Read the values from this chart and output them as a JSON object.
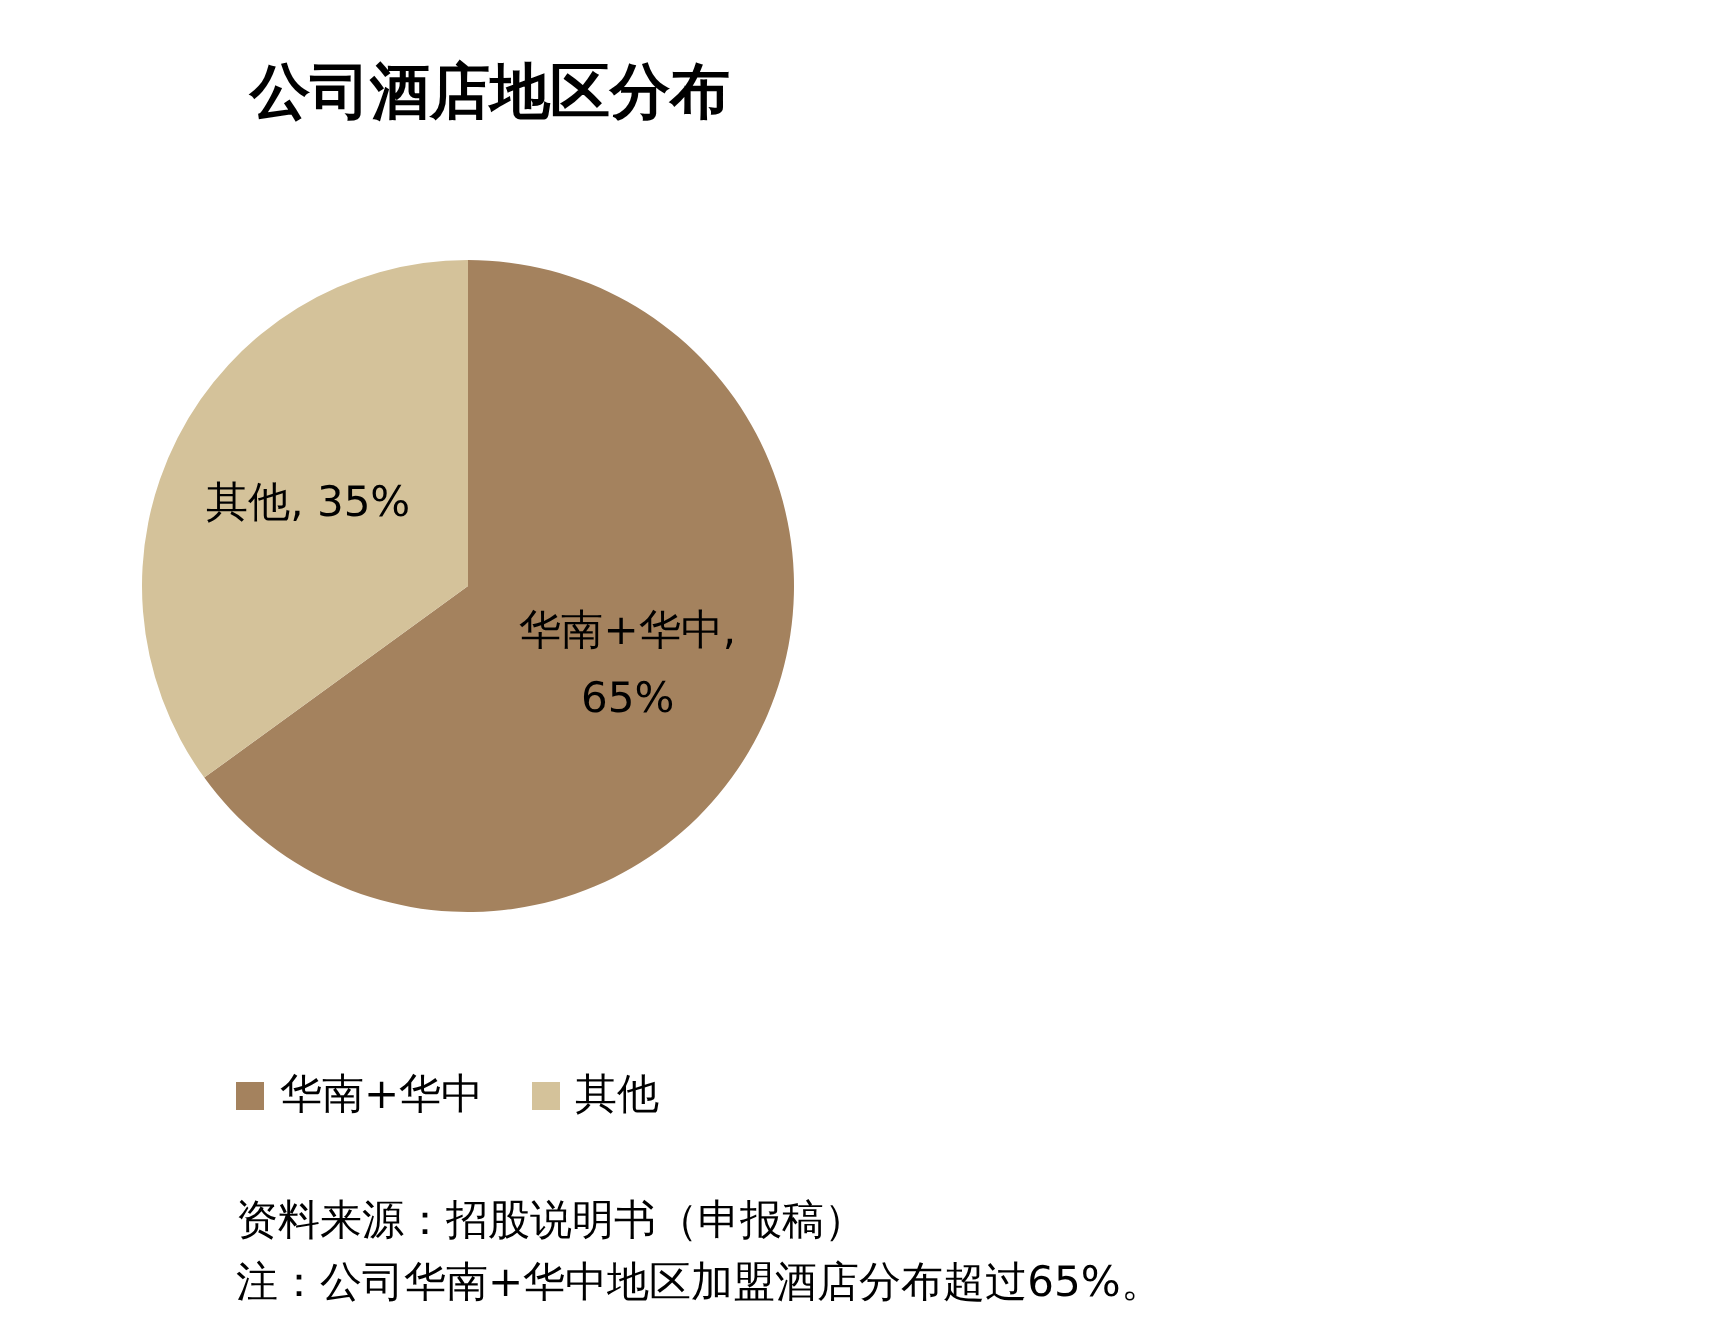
{
  "chart_data": {
    "type": "pie",
    "title": "公司酒店地区分布",
    "categories": [
      "华南+华中",
      "其他"
    ],
    "values": [
      65,
      35
    ],
    "colors": [
      "#a4825e",
      "#d4c29a"
    ],
    "value_labels": [
      "华南+华中, 65%",
      "其他, 35%"
    ],
    "legend": "bottom left",
    "annotations": [
      "资料来源：招股说明书（申报稿）",
      "注：公司华南+华中地区加盟酒店分布超过65%。"
    ]
  }
}
